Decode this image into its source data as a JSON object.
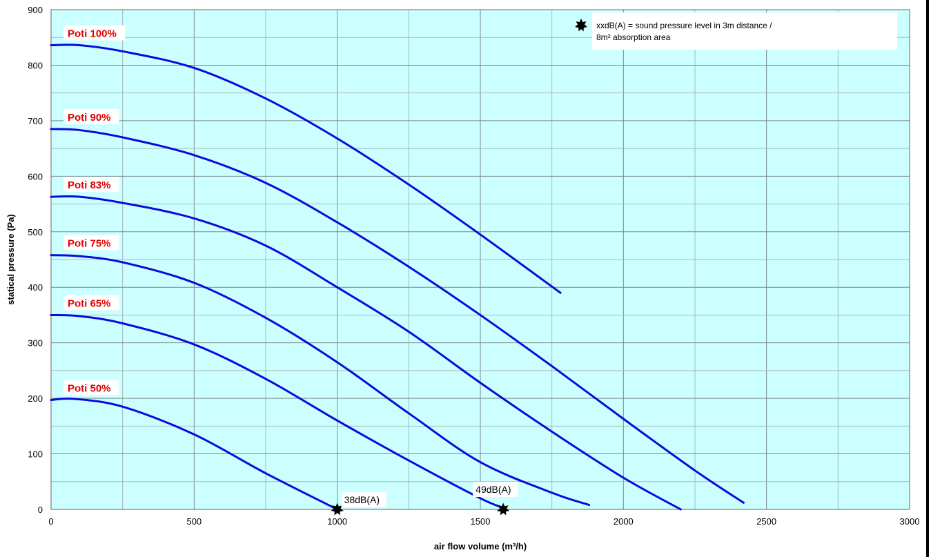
{
  "chart_data": {
    "type": "line",
    "xlabel": "air flow volume (m³/h)",
    "ylabel": "statical pressure (Pa)",
    "xlim": [
      0,
      3000
    ],
    "ylim": [
      0,
      900
    ],
    "x_ticks": [
      "0",
      "500",
      "1000",
      "1500",
      "2000",
      "2500",
      "3000"
    ],
    "y_ticks": [
      "0",
      "100",
      "200",
      "300",
      "400",
      "500",
      "600",
      "700",
      "800",
      "900"
    ],
    "grid": true,
    "background_color": "#ccffff",
    "line_color": "#0a0adc",
    "label_color": "#e00000",
    "series": [
      {
        "name": "Poti 100%",
        "x": [
          0,
          100,
          250,
          500,
          750,
          1000,
          1250,
          1500,
          1780
        ],
        "y": [
          836,
          836,
          825,
          795,
          740,
          668,
          585,
          495,
          390
        ]
      },
      {
        "name": "Poti 90%",
        "x": [
          0,
          100,
          250,
          500,
          750,
          1000,
          1250,
          1500,
          1750,
          2000,
          2250,
          2420
        ],
        "y": [
          685,
          683,
          670,
          638,
          588,
          517,
          437,
          350,
          258,
          163,
          70,
          12
        ]
      },
      {
        "name": "Poti 83%",
        "x": [
          0,
          100,
          250,
          500,
          750,
          1000,
          1250,
          1500,
          1750,
          2000,
          2200
        ],
        "y": [
          563,
          563,
          552,
          524,
          475,
          400,
          320,
          228,
          140,
          57,
          0
        ]
      },
      {
        "name": "Poti 75%",
        "x": [
          0,
          100,
          250,
          500,
          750,
          1000,
          1250,
          1500,
          1750,
          1880
        ],
        "y": [
          458,
          456,
          445,
          408,
          345,
          265,
          173,
          85,
          30,
          8
        ]
      },
      {
        "name": "Poti 65%",
        "x": [
          0,
          100,
          250,
          500,
          750,
          1000,
          1250,
          1500,
          1580
        ],
        "y": [
          350,
          348,
          335,
          297,
          235,
          160,
          88,
          20,
          3
        ]
      },
      {
        "name": "Poti 50%",
        "x": [
          0,
          80,
          250,
          500,
          750,
          1000
        ],
        "y": [
          197,
          199,
          185,
          135,
          65,
          0
        ]
      }
    ],
    "markers": [
      {
        "label": "38dB(A)",
        "x": 1000,
        "y": 0
      },
      {
        "label": "49dB(A)",
        "x": 1580,
        "y": 0
      }
    ],
    "legend": {
      "text_line1": "xxdB(A) = sound pressure level in 3m distance /",
      "text_line2": "8m² absorption area",
      "placement": "top-right"
    }
  }
}
